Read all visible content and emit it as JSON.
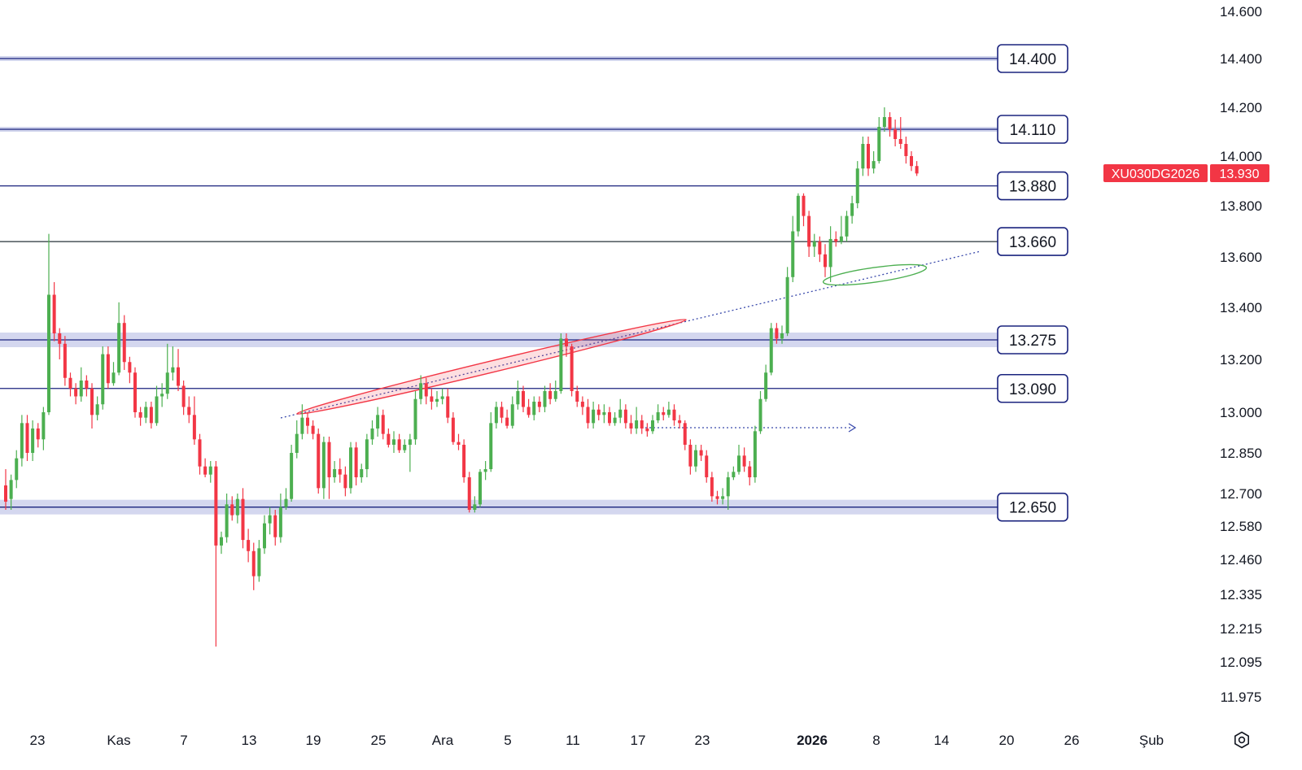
{
  "chart_data": {
    "type": "candlestick",
    "symbol": "XU030DG2026",
    "last_price": "13.930",
    "colors": {
      "up": "#4caf50",
      "down": "#f23645",
      "level_line": "#1a237e",
      "zone_fill": "#c5cae9",
      "trend_dotted": "#3949ab",
      "ellipse_red": "#f23645",
      "ellipse_green": "#4caf50",
      "tag_bg": "#f23645"
    },
    "y_ticks": [
      "14.600",
      "14.400",
      "14.200",
      "14.000",
      "13.800",
      "13.600",
      "13.400",
      "13.200",
      "13.000",
      "12.850",
      "12.700",
      "12.580",
      "12.460",
      "12.335",
      "12.215",
      "12.095",
      "11.975"
    ],
    "x_ticks": [
      "23",
      "Kas",
      "7",
      "13",
      "19",
      "25",
      "Ara",
      "5",
      "11",
      "17",
      "23",
      "2026",
      "8",
      "14",
      "20",
      "26",
      "Şub"
    ],
    "levels": [
      {
        "label": "14.400",
        "value": 14400
      },
      {
        "label": "14.110",
        "value": 14110
      },
      {
        "label": "13.880",
        "value": 13880
      },
      {
        "label": "13.660",
        "value": 13660
      },
      {
        "label": "13.275",
        "value": 13275
      },
      {
        "label": "13.090",
        "value": 13090
      },
      {
        "label": "12.650",
        "value": 12650
      }
    ],
    "candles": [
      [
        12730,
        12670,
        12790,
        12640
      ],
      [
        12680,
        12750,
        12770,
        12640
      ],
      [
        12750,
        12830,
        12860,
        12720
      ],
      [
        12830,
        12960,
        12990,
        12800
      ],
      [
        12960,
        12850,
        12990,
        12820
      ],
      [
        12850,
        12940,
        12970,
        12820
      ],
      [
        12940,
        12900,
        12960,
        12870
      ],
      [
        12900,
        13000,
        13020,
        12860
      ],
      [
        13000,
        13450,
        13690,
        12990
      ],
      [
        13450,
        13300,
        13500,
        13270
      ],
      [
        13300,
        13260,
        13320,
        13200
      ],
      [
        13260,
        13130,
        13290,
        13100
      ],
      [
        13130,
        13090,
        13150,
        13060
      ],
      [
        13090,
        13060,
        13110,
        13030
      ],
      [
        13060,
        13120,
        13170,
        13040
      ],
      [
        13120,
        13090,
        13140,
        13060
      ],
      [
        13090,
        12990,
        13110,
        12940
      ],
      [
        12990,
        13030,
        13060,
        12970
      ],
      [
        13030,
        13220,
        13250,
        13010
      ],
      [
        13220,
        13110,
        13250,
        13090
      ],
      [
        13110,
        13150,
        13190,
        13100
      ],
      [
        13150,
        13340,
        13420,
        13140
      ],
      [
        13340,
        13190,
        13370,
        13160
      ],
      [
        13190,
        13150,
        13210,
        13110
      ],
      [
        13150,
        13000,
        13170,
        12980
      ],
      [
        13000,
        12980,
        13020,
        12950
      ],
      [
        12980,
        13020,
        13040,
        12960
      ],
      [
        13020,
        12960,
        13040,
        12940
      ],
      [
        12960,
        13060,
        13100,
        12950
      ],
      [
        13060,
        13070,
        13110,
        13020
      ],
      [
        13070,
        13150,
        13260,
        13050
      ],
      [
        13150,
        13170,
        13250,
        13120
      ],
      [
        13170,
        13100,
        13240,
        13080
      ],
      [
        13100,
        13020,
        13120,
        12990
      ],
      [
        13020,
        12990,
        13060,
        12960
      ],
      [
        12990,
        12900,
        13060,
        12880
      ],
      [
        12900,
        12800,
        12920,
        12770
      ],
      [
        12800,
        12770,
        12830,
        12760
      ],
      [
        12770,
        12800,
        12820,
        12740
      ],
      [
        12800,
        12510,
        12820,
        12150
      ],
      [
        12510,
        12540,
        12560,
        12480
      ],
      [
        12540,
        12660,
        12700,
        12520
      ],
      [
        12660,
        12620,
        12690,
        12600
      ],
      [
        12620,
        12680,
        12700,
        12590
      ],
      [
        12680,
        12530,
        12720,
        12500
      ],
      [
        12530,
        12490,
        12570,
        12450
      ],
      [
        12490,
        12400,
        12520,
        12350
      ],
      [
        12400,
        12500,
        12530,
        12380
      ],
      [
        12500,
        12590,
        12620,
        12480
      ],
      [
        12590,
        12620,
        12650,
        12550
      ],
      [
        12620,
        12540,
        12640,
        12510
      ],
      [
        12540,
        12650,
        12700,
        12520
      ],
      [
        12650,
        12680,
        12720,
        12640
      ],
      [
        12680,
        12850,
        12880,
        12670
      ],
      [
        12850,
        12920,
        12970,
        12830
      ],
      [
        12920,
        12980,
        13030,
        12900
      ],
      [
        12980,
        12950,
        13000,
        12920
      ],
      [
        12950,
        12920,
        12970,
        12900
      ],
      [
        12920,
        12720,
        12940,
        12700
      ],
      [
        12720,
        12890,
        12910,
        12680
      ],
      [
        12890,
        12760,
        12910,
        12680
      ],
      [
        12760,
        12790,
        12820,
        12740
      ],
      [
        12790,
        12770,
        12830,
        12740
      ],
      [
        12770,
        12720,
        12800,
        12690
      ],
      [
        12720,
        12870,
        12890,
        12700
      ],
      [
        12870,
        12760,
        12890,
        12730
      ],
      [
        12760,
        12790,
        12810,
        12740
      ],
      [
        12790,
        12900,
        12920,
        12760
      ],
      [
        12900,
        12940,
        12970,
        12880
      ],
      [
        12940,
        12990,
        13020,
        12910
      ],
      [
        12990,
        12920,
        13010,
        12900
      ],
      [
        12920,
        12880,
        12940,
        12870
      ],
      [
        12880,
        12900,
        12930,
        12850
      ],
      [
        12900,
        12860,
        12920,
        12850
      ],
      [
        12860,
        12880,
        12900,
        12850
      ],
      [
        12880,
        12900,
        12920,
        12780
      ],
      [
        12900,
        13050,
        13080,
        12880
      ],
      [
        13050,
        13110,
        13140,
        13030
      ],
      [
        13110,
        13060,
        13130,
        13030
      ],
      [
        13060,
        13040,
        13090,
        13010
      ],
      [
        13040,
        13050,
        13080,
        13020
      ],
      [
        13050,
        13060,
        13090,
        13030
      ],
      [
        13060,
        12980,
        13090,
        12960
      ],
      [
        12980,
        12890,
        13000,
        12880
      ],
      [
        12890,
        12880,
        12920,
        12860
      ],
      [
        12880,
        12760,
        12900,
        12740
      ],
      [
        12760,
        12640,
        12780,
        12630
      ],
      [
        12640,
        12660,
        12690,
        12630
      ],
      [
        12660,
        12780,
        12790,
        12650
      ],
      [
        12780,
        12790,
        12820,
        12750
      ],
      [
        12790,
        12960,
        13000,
        12780
      ],
      [
        12960,
        13020,
        13040,
        12940
      ],
      [
        13020,
        12980,
        13040,
        12960
      ],
      [
        12980,
        12950,
        13010,
        12940
      ],
      [
        12950,
        13030,
        13060,
        12940
      ],
      [
        13030,
        13080,
        13120,
        13010
      ],
      [
        13080,
        13020,
        13100,
        13000
      ],
      [
        13020,
        12990,
        13050,
        12980
      ],
      [
        12990,
        13040,
        13060,
        12970
      ],
      [
        13040,
        13020,
        13060,
        13000
      ],
      [
        13020,
        13080,
        13100,
        13000
      ],
      [
        13080,
        13050,
        13110,
        13030
      ],
      [
        13050,
        13080,
        13120,
        13040
      ],
      [
        13080,
        13280,
        13300,
        13070
      ],
      [
        13280,
        13250,
        13300,
        13210
      ],
      [
        13250,
        13080,
        13260,
        13060
      ],
      [
        13080,
        13040,
        13100,
        13020
      ],
      [
        13040,
        13020,
        13060,
        12990
      ],
      [
        13020,
        12960,
        13050,
        12940
      ],
      [
        12960,
        13010,
        13040,
        12940
      ],
      [
        13010,
        12990,
        13030,
        12970
      ],
      [
        12990,
        13000,
        13030,
        12960
      ],
      [
        13000,
        12960,
        13020,
        12950
      ],
      [
        12960,
        12980,
        13000,
        12950
      ],
      [
        12980,
        13010,
        13050,
        12960
      ],
      [
        13010,
        12960,
        13030,
        12940
      ],
      [
        12960,
        12940,
        12990,
        12920
      ],
      [
        12940,
        12970,
        13020,
        12920
      ],
      [
        12970,
        12940,
        12990,
        12920
      ],
      [
        12940,
        12930,
        12960,
        12910
      ],
      [
        12930,
        12970,
        12990,
        12920
      ],
      [
        12970,
        13000,
        13030,
        12960
      ],
      [
        13000,
        12990,
        13020,
        12970
      ],
      [
        12990,
        13010,
        13040,
        12980
      ],
      [
        13010,
        12970,
        13030,
        12950
      ],
      [
        12970,
        12960,
        12990,
        12940
      ],
      [
        12960,
        12880,
        12970,
        12860
      ],
      [
        12880,
        12800,
        12900,
        12770
      ],
      [
        12800,
        12860,
        12880,
        12780
      ],
      [
        12860,
        12840,
        12880,
        12820
      ],
      [
        12840,
        12760,
        12860,
        12740
      ],
      [
        12760,
        12690,
        12780,
        12670
      ],
      [
        12690,
        12680,
        12710,
        12660
      ],
      [
        12680,
        12690,
        12720,
        12660
      ],
      [
        12690,
        12760,
        12780,
        12640
      ],
      [
        12760,
        12780,
        12800,
        12750
      ],
      [
        12780,
        12840,
        12880,
        12770
      ],
      [
        12840,
        12800,
        12870,
        12780
      ],
      [
        12800,
        12760,
        12820,
        12730
      ],
      [
        12760,
        12930,
        12950,
        12740
      ],
      [
        12930,
        13050,
        13080,
        12920
      ],
      [
        13050,
        13150,
        13180,
        13040
      ],
      [
        13150,
        13320,
        13340,
        13140
      ],
      [
        13320,
        13280,
        13340,
        13260
      ],
      [
        13280,
        13300,
        13330,
        13260
      ],
      [
        13300,
        13520,
        13560,
        13290
      ],
      [
        13520,
        13700,
        13760,
        13500
      ],
      [
        13700,
        13840,
        13850,
        13680
      ],
      [
        13840,
        13760,
        13850,
        13720
      ],
      [
        13760,
        13640,
        13780,
        13600
      ],
      [
        13640,
        13660,
        13690,
        13600
      ],
      [
        13660,
        13610,
        13680,
        13580
      ],
      [
        13610,
        13560,
        13650,
        13520
      ],
      [
        13560,
        13670,
        13720,
        13500
      ],
      [
        13670,
        13660,
        13700,
        13640
      ],
      [
        13660,
        13680,
        13760,
        13650
      ],
      [
        13680,
        13760,
        13780,
        13660
      ],
      [
        13760,
        13810,
        13840,
        13730
      ],
      [
        13810,
        13950,
        13980,
        13790
      ],
      [
        13950,
        14050,
        14080,
        13920
      ],
      [
        14050,
        13950,
        14080,
        13920
      ],
      [
        13950,
        13980,
        14020,
        13930
      ],
      [
        13980,
        14120,
        14160,
        13970
      ],
      [
        14120,
        14160,
        14200,
        14100
      ],
      [
        14160,
        14110,
        14180,
        14080
      ],
      [
        14110,
        14070,
        14150,
        14040
      ],
      [
        14070,
        14050,
        14160,
        14030
      ],
      [
        14050,
        14000,
        14080,
        13970
      ],
      [
        14000,
        13960,
        14020,
        13940
      ],
      [
        13960,
        13930,
        13980,
        13920
      ]
    ]
  }
}
